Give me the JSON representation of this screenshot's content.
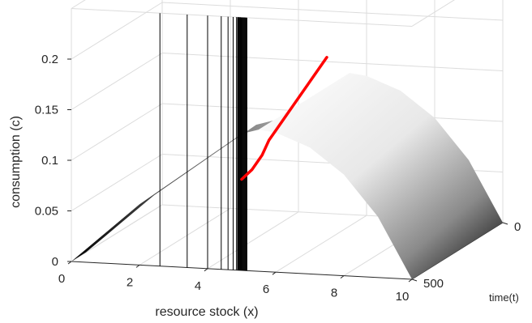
{
  "chart_data": {
    "type": "3d-surface",
    "xlabel": "resource stock (x)",
    "ylabel": "time(t)",
    "zlabel": "consumption (c)",
    "x_ticks": [
      "0",
      "2",
      "4",
      "6",
      "8",
      "10"
    ],
    "y_ticks": [
      "0",
      "500"
    ],
    "z_ticks": [
      "0",
      "0.05",
      "0.1",
      "0.15",
      "0.2"
    ],
    "xlim": [
      0,
      10
    ],
    "ylim": [
      0,
      500
    ],
    "zlim": [
      0,
      0.2
    ],
    "grid": true,
    "surface": {
      "colormap": "gray",
      "description_shape": "c(x) rises from 0 at x=0 to a peak near x=5.5 then falls to 0 at x=10",
      "profile_x": [
        0,
        1,
        2,
        3,
        4,
        5,
        5.5,
        6,
        7,
        8,
        9,
        10
      ],
      "profile_c": [
        0,
        0.03,
        0.06,
        0.085,
        0.11,
        0.135,
        0.14,
        0.138,
        0.125,
        0.1,
        0.06,
        0
      ]
    },
    "vertical_lines": {
      "color": "#000000",
      "x_positions": [
        2.6,
        3.4,
        4.0,
        4.4,
        4.6,
        4.75,
        4.85,
        4.92,
        4.97,
        5.0
      ],
      "z_bottom": 0,
      "z_top": 0.25
    },
    "series": [
      {
        "name": "",
        "color": "#ff0000",
        "points_xz": [
          [
            5.0,
            0.09
          ],
          [
            5.3,
            0.1
          ],
          [
            5.6,
            0.115
          ],
          [
            5.8,
            0.13
          ],
          [
            6.0,
            0.14
          ],
          [
            6.3,
            0.155
          ],
          [
            6.7,
            0.175
          ],
          [
            7.1,
            0.195
          ],
          [
            7.5,
            0.215
          ]
        ]
      }
    ]
  }
}
